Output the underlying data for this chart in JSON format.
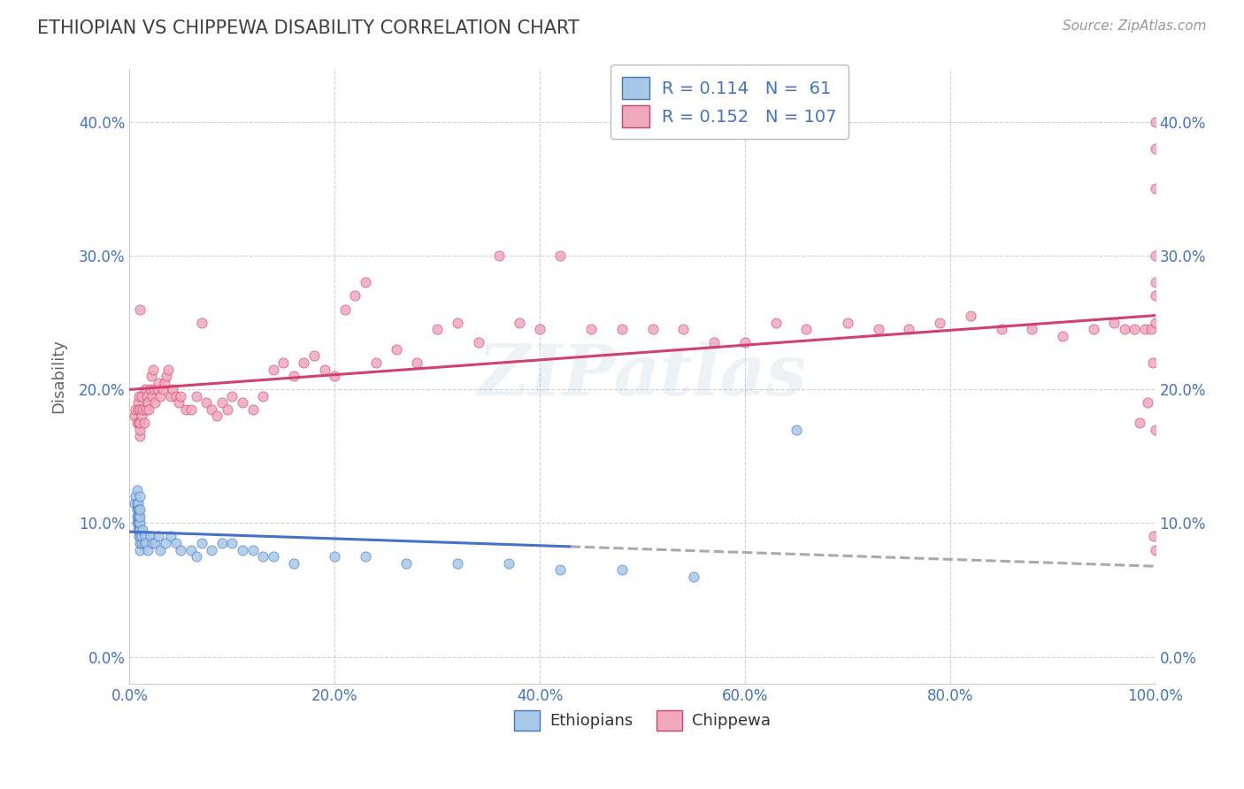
{
  "title": "ETHIOPIAN VS CHIPPEWA DISABILITY CORRELATION CHART",
  "source": "Source: ZipAtlas.com",
  "ylabel": "Disability",
  "xlim": [
    0.0,
    1.0
  ],
  "ylim": [
    -0.02,
    0.44
  ],
  "xticks": [
    0.0,
    0.2,
    0.4,
    0.6,
    0.8,
    1.0
  ],
  "xticklabels": [
    "0.0%",
    "20.0%",
    "40.0%",
    "60.0%",
    "80.0%",
    "100.0%"
  ],
  "yticks": [
    0.0,
    0.1,
    0.2,
    0.3,
    0.4
  ],
  "yticklabels": [
    "0.0%",
    "10.0%",
    "20.0%",
    "30.0%",
    "40.0%"
  ],
  "legend_r_ethiopian": "R = 0.114",
  "legend_n_ethiopian": "N =  61",
  "legend_r_chippewa": "R = 0.152",
  "legend_n_chippewa": "N = 107",
  "ethiopian_color": "#a8c8e8",
  "chippewa_color": "#f0a8bc",
  "ethiopian_line_color": "#4472c4",
  "chippewa_line_color": "#d04070",
  "trend_ext_color": "#aaaaaa",
  "watermark": "ZIPatlas",
  "background_color": "#ffffff",
  "grid_color": "#cccccc",
  "title_color": "#404040",
  "label_color": "#4472c4",
  "ethiopian_x": [
    0.005,
    0.006,
    0.007,
    0.007,
    0.007,
    0.007,
    0.007,
    0.008,
    0.008,
    0.008,
    0.008,
    0.008,
    0.009,
    0.009,
    0.009,
    0.009,
    0.009,
    0.01,
    0.01,
    0.01,
    0.01,
    0.01,
    0.01,
    0.01,
    0.01,
    0.012,
    0.012,
    0.013,
    0.014,
    0.015,
    0.016,
    0.018,
    0.02,
    0.022,
    0.025,
    0.028,
    0.03,
    0.035,
    0.04,
    0.045,
    0.05,
    0.06,
    0.065,
    0.07,
    0.08,
    0.09,
    0.1,
    0.11,
    0.12,
    0.13,
    0.14,
    0.16,
    0.2,
    0.23,
    0.27,
    0.32,
    0.37,
    0.42,
    0.48,
    0.55,
    0.65
  ],
  "ethiopian_y": [
    0.115,
    0.12,
    0.1,
    0.105,
    0.11,
    0.115,
    0.125,
    0.095,
    0.1,
    0.105,
    0.11,
    0.115,
    0.09,
    0.095,
    0.1,
    0.105,
    0.11,
    0.08,
    0.085,
    0.09,
    0.095,
    0.1,
    0.105,
    0.11,
    0.12,
    0.085,
    0.09,
    0.095,
    0.085,
    0.09,
    0.085,
    0.08,
    0.09,
    0.085,
    0.085,
    0.09,
    0.08,
    0.085,
    0.09,
    0.085,
    0.08,
    0.08,
    0.075,
    0.085,
    0.08,
    0.085,
    0.085,
    0.08,
    0.08,
    0.075,
    0.075,
    0.07,
    0.075,
    0.075,
    0.07,
    0.07,
    0.07,
    0.065,
    0.065,
    0.06,
    0.17
  ],
  "chippewa_x": [
    0.005,
    0.006,
    0.007,
    0.008,
    0.008,
    0.009,
    0.009,
    0.01,
    0.01,
    0.01,
    0.01,
    0.01,
    0.012,
    0.012,
    0.013,
    0.014,
    0.015,
    0.016,
    0.017,
    0.018,
    0.019,
    0.02,
    0.021,
    0.022,
    0.023,
    0.024,
    0.025,
    0.027,
    0.028,
    0.03,
    0.032,
    0.034,
    0.036,
    0.038,
    0.04,
    0.042,
    0.045,
    0.048,
    0.05,
    0.055,
    0.06,
    0.065,
    0.07,
    0.075,
    0.08,
    0.085,
    0.09,
    0.095,
    0.1,
    0.11,
    0.12,
    0.13,
    0.14,
    0.15,
    0.16,
    0.17,
    0.18,
    0.19,
    0.2,
    0.21,
    0.22,
    0.23,
    0.24,
    0.26,
    0.28,
    0.3,
    0.32,
    0.34,
    0.36,
    0.38,
    0.4,
    0.42,
    0.45,
    0.48,
    0.51,
    0.54,
    0.57,
    0.6,
    0.63,
    0.66,
    0.7,
    0.73,
    0.76,
    0.79,
    0.82,
    0.85,
    0.88,
    0.91,
    0.94,
    0.96,
    0.97,
    0.98,
    0.985,
    0.99,
    0.993,
    0.996,
    0.998,
    0.999,
    1.0,
    1.0,
    1.0,
    1.0,
    1.0,
    1.0,
    1.0,
    1.0,
    1.0
  ],
  "chippewa_y": [
    0.18,
    0.185,
    0.175,
    0.19,
    0.185,
    0.175,
    0.195,
    0.165,
    0.17,
    0.175,
    0.185,
    0.26,
    0.18,
    0.195,
    0.185,
    0.175,
    0.2,
    0.185,
    0.195,
    0.19,
    0.185,
    0.2,
    0.21,
    0.195,
    0.215,
    0.2,
    0.19,
    0.2,
    0.205,
    0.195,
    0.2,
    0.205,
    0.21,
    0.215,
    0.195,
    0.2,
    0.195,
    0.19,
    0.195,
    0.185,
    0.185,
    0.195,
    0.25,
    0.19,
    0.185,
    0.18,
    0.19,
    0.185,
    0.195,
    0.19,
    0.185,
    0.195,
    0.215,
    0.22,
    0.21,
    0.22,
    0.225,
    0.215,
    0.21,
    0.26,
    0.27,
    0.28,
    0.22,
    0.23,
    0.22,
    0.245,
    0.25,
    0.235,
    0.3,
    0.25,
    0.245,
    0.3,
    0.245,
    0.245,
    0.245,
    0.245,
    0.235,
    0.235,
    0.25,
    0.245,
    0.25,
    0.245,
    0.245,
    0.25,
    0.255,
    0.245,
    0.245,
    0.24,
    0.245,
    0.25,
    0.245,
    0.245,
    0.175,
    0.245,
    0.19,
    0.245,
    0.22,
    0.09,
    0.08,
    0.17,
    0.25,
    0.35,
    0.38,
    0.4,
    0.27,
    0.3,
    0.28
  ]
}
